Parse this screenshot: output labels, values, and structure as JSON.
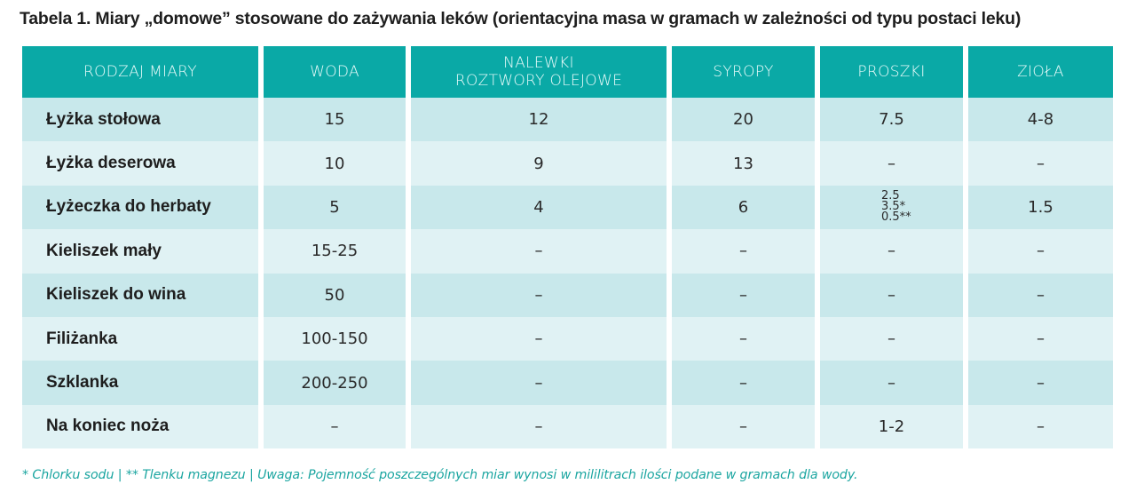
{
  "title": "Tabela 1. Miary „domowe” stosowane do zażywania leków (orientacyjna masa w gramach w zależności od typu postaci leku)",
  "colors": {
    "header_bg": "#0aa9a6",
    "row_dark": "#c8e8eb",
    "row_light": "#e0f2f4",
    "footnote": "#1aa5a0"
  },
  "table": {
    "headers": [
      "RODZAJ MIARY",
      "WODA",
      "NALEWKI\nROZTWORY OLEJOWE",
      "SYROPY",
      "PROSZKI",
      "ZIOŁA"
    ],
    "header_lines": {
      "nalewki_1": "NALEWKI",
      "nalewki_2": "ROZTWORY OLEJOWE"
    },
    "rows": [
      {
        "measure": "Łyżka stołowa",
        "woda": "15",
        "nalewki": "12",
        "syropy": "20",
        "proszki": "7.5",
        "ziola": "4-8"
      },
      {
        "measure": "Łyżka deserowa",
        "woda": "10",
        "nalewki": "9",
        "syropy": "13",
        "proszki": "–",
        "ziola": "–"
      },
      {
        "measure": "Łyżeczka do herbaty",
        "woda": "5",
        "nalewki": "4",
        "syropy": "6",
        "proszki": "2.5 / 3.5* / 0.5**",
        "proszki_lines": [
          "2.5",
          "3.5*",
          "0.5**"
        ],
        "ziola": "1.5"
      },
      {
        "measure": "Kieliszek mały",
        "woda": "15-25",
        "nalewki": "–",
        "syropy": "–",
        "proszki": "–",
        "ziola": "–"
      },
      {
        "measure": "Kieliszek do wina",
        "woda": "50",
        "nalewki": "–",
        "syropy": "–",
        "proszki": "–",
        "ziola": "–"
      },
      {
        "measure": "Filiżanka",
        "woda": "100-150",
        "nalewki": "–",
        "syropy": "–",
        "proszki": "–",
        "ziola": "–"
      },
      {
        "measure": "Szklanka",
        "woda": "200-250",
        "nalewki": "–",
        "syropy": "–",
        "proszki": "–",
        "ziola": "–"
      },
      {
        "measure": "Na koniec noża",
        "woda": "–",
        "nalewki": "–",
        "syropy": "–",
        "proszki": "1-2",
        "ziola": "–"
      }
    ]
  },
  "footnote": "* Chlorku sodu | ** Tlenku magnezu | Uwaga: Pojemność poszczególnych miar wynosi w mililitrach ilości podane w gramach dla wody."
}
